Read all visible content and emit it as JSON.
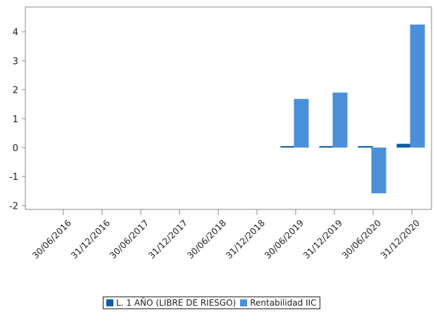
{
  "chart_data": {
    "type": "bar",
    "categories": [
      "30/06/2016",
      "31/12/2016",
      "30/06/2017",
      "31/12/2017",
      "30/06/2018",
      "31/12/2018",
      "30/06/2019",
      "31/12/2019",
      "30/06/2020",
      "31/12/2020"
    ],
    "series": [
      {
        "name": "L. 1 AÑO (LIBRE DE RIESGO)",
        "color": "#0a5ca8",
        "values": [
          null,
          null,
          null,
          null,
          null,
          null,
          0.02,
          0.04,
          0.05,
          0.13
        ]
      },
      {
        "name": "Rentabilidad IIC",
        "color": "#4a90d9",
        "values": [
          null,
          null,
          null,
          null,
          null,
          null,
          1.68,
          1.9,
          -1.58,
          4.25
        ]
      }
    ],
    "yticks": [
      "4",
      "3",
      "2",
      "1",
      "0",
      "-1",
      "-2"
    ],
    "ylim": [
      -2.2,
      4.85
    ],
    "legend_position": "bottom",
    "grid": false
  }
}
